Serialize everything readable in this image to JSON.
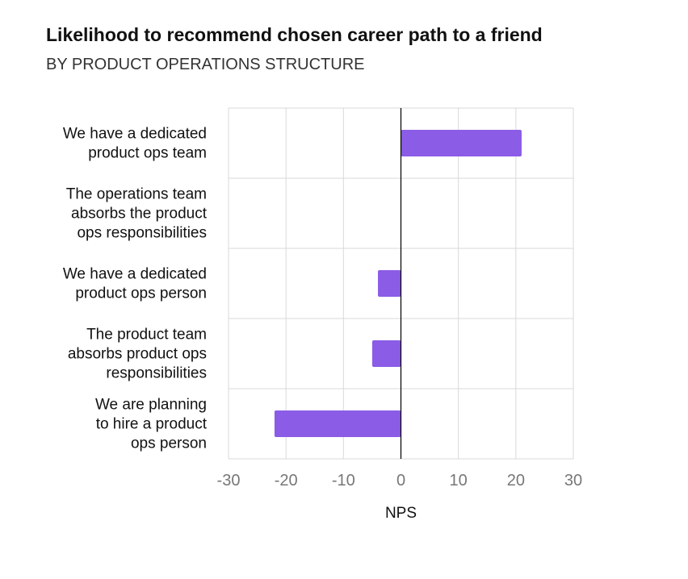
{
  "title": "Likelihood to recommend chosen career path to a friend",
  "subtitle": "BY PRODUCT OPERATIONS STRUCTURE",
  "colors": {
    "bar": "#8B5CE6",
    "grid": "#d9d9d9",
    "zero_line": "#000000",
    "tick_text": "#777777"
  },
  "chart_data": {
    "type": "bar",
    "orientation": "horizontal",
    "title": "Likelihood to recommend chosen career path to a friend",
    "subtitle": "BY PRODUCT OPERATIONS STRUCTURE",
    "xlabel": "NPS",
    "ylabel": "",
    "xlim": [
      -30,
      30
    ],
    "xticks": [
      -30,
      -20,
      -10,
      0,
      10,
      20,
      30
    ],
    "grid": true,
    "categories": [
      [
        "We have a dedicated",
        "product ops team"
      ],
      [
        "The operations team",
        "absorbs the product",
        "ops responsibilities"
      ],
      [
        "We have a dedicated",
        "product ops person"
      ],
      [
        "The product team",
        "absorbs product ops",
        "responsibilities"
      ],
      [
        "We are planning",
        "to hire a product",
        "ops person"
      ]
    ],
    "values": [
      21,
      0,
      -4,
      -5,
      -22
    ]
  }
}
